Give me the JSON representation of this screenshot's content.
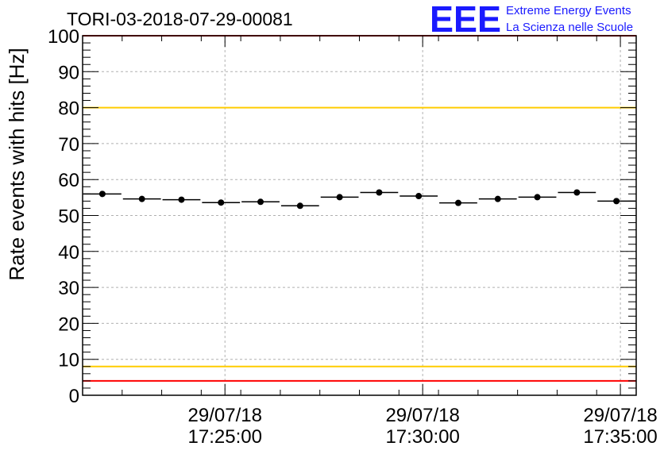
{
  "chart_data": {
    "type": "scatter",
    "title": "TORI-03-2018-07-29-00081",
    "ylabel": "Rate events with hits [Hz]",
    "xlabel": "",
    "ylim": [
      0,
      100
    ],
    "y_ticks": [
      0,
      10,
      20,
      30,
      40,
      50,
      60,
      70,
      80,
      90,
      100
    ],
    "x_range_minutes": [
      0,
      14
    ],
    "x_ticks": [
      {
        "minute": 3.6,
        "date": "29/07/18",
        "time": "17:25:00"
      },
      {
        "minute": 8.6,
        "date": "29/07/18",
        "time": "17:30:00"
      },
      {
        "minute": 13.6,
        "date": "29/07/18",
        "time": "17:35:00"
      }
    ],
    "grid": true,
    "bin_width_minutes": 1,
    "series": [
      {
        "name": "rate",
        "x_minutes": [
          0.5,
          1.5,
          2.5,
          3.5,
          4.5,
          5.5,
          6.5,
          7.5,
          8.5,
          9.5,
          10.5,
          11.5,
          12.5,
          13.5
        ],
        "values": [
          56.0,
          54.6,
          54.4,
          53.6,
          53.8,
          52.7,
          55.1,
          56.4,
          55.4,
          53.5,
          54.6,
          55.1,
          56.4,
          54.0
        ]
      }
    ],
    "reference_lines": [
      {
        "value": 100,
        "color": "#ff0000"
      },
      {
        "value": 80,
        "color": "#ffcc00"
      },
      {
        "value": 8,
        "color": "#ffcc00"
      },
      {
        "value": 4,
        "color": "#ff0000"
      }
    ]
  },
  "logo": {
    "text": "EEE",
    "line1": "Extreme Energy Events",
    "line2": "La Scienza nelle Scuole",
    "color": "#1a1aff"
  }
}
